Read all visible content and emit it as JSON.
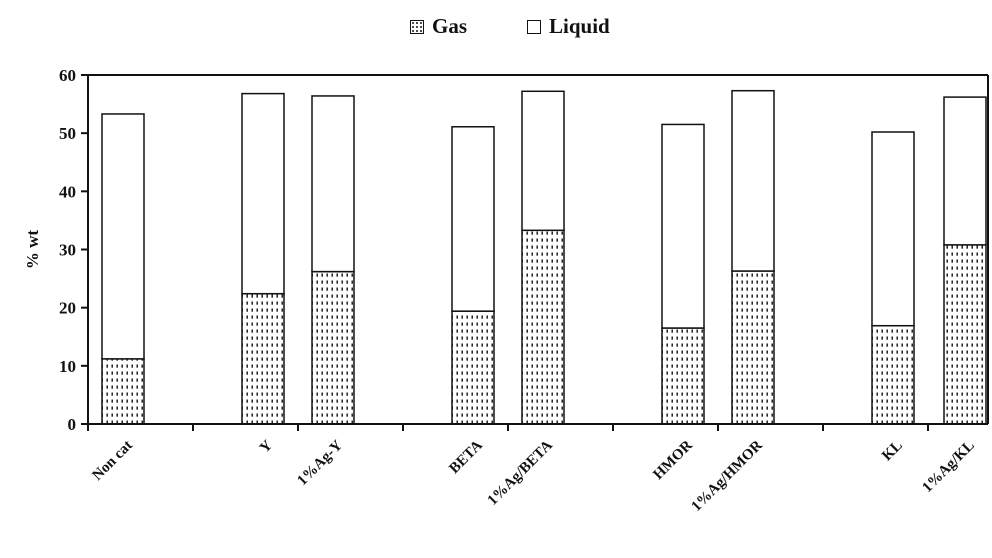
{
  "chart_data": {
    "type": "bar",
    "stacked": true,
    "title": "",
    "xlabel": "",
    "ylabel": "% wt",
    "ylim": [
      0,
      60
    ],
    "yticks": [
      0,
      10,
      20,
      30,
      40,
      50,
      60
    ],
    "grid": false,
    "legend_position": "top",
    "categories": [
      "Non cat",
      "Y",
      "1%Ag-Y",
      "BETA",
      "1%Ag/BETA",
      "HMOR",
      "1%Ag/HMOR",
      "KL",
      "1%Ag/KL"
    ],
    "series": [
      {
        "name": "Gas",
        "pattern": "dotted",
        "values": [
          11.2,
          22.4,
          26.2,
          19.4,
          33.3,
          16.5,
          26.3,
          16.9,
          30.8
        ]
      },
      {
        "name": "Liquid",
        "pattern": "blank",
        "values": [
          42.1,
          34.4,
          30.2,
          31.7,
          23.9,
          35.0,
          31.0,
          33.3,
          25.4
        ]
      }
    ],
    "totals": [
      53.3,
      56.8,
      56.4,
      51.1,
      57.2,
      51.5,
      57.3,
      50.2,
      56.2
    ]
  }
}
